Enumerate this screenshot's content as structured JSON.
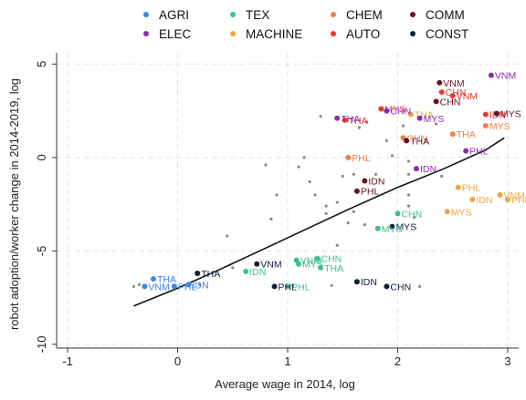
{
  "chart_data": {
    "type": "scatter",
    "xlabel": "Average wage in 2014, log",
    "ylabel": "robot adoption/worker change in 2014-2019, log",
    "xlim": [
      -1.1,
      3.1
    ],
    "ylim": [
      -10.2,
      5.6
    ],
    "xticks": [
      -1,
      0,
      1,
      2,
      3
    ],
    "yticks": [
      -10,
      -5,
      0,
      5
    ],
    "grid": true,
    "legend_position": "top",
    "legend": [
      {
        "key": "AGRI",
        "label": "AGRI",
        "color": "#3a86e8"
      },
      {
        "key": "TEX",
        "label": "TEX",
        "color": "#3fbf8f"
      },
      {
        "key": "CHEM",
        "label": "CHEM",
        "color": "#f07f4a"
      },
      {
        "key": "COMM",
        "label": "COMM",
        "color": "#6b1020"
      },
      {
        "key": "ELEC",
        "label": "ELEC",
        "color": "#8b2bb3"
      },
      {
        "key": "MACHINE",
        "label": "MACHINE",
        "color": "#eba93d"
      },
      {
        "key": "AUTO",
        "label": "AUTO",
        "color": "#e8392e"
      },
      {
        "key": "CONST",
        "label": "CONST",
        "color": "#101c3c"
      }
    ],
    "labeled_points": [
      {
        "sector": "AGRI",
        "country": "THA",
        "x": -0.22,
        "y": -6.5
      },
      {
        "sector": "AGRI",
        "country": "VNM",
        "x": -0.3,
        "y": -6.9
      },
      {
        "sector": "AGRI",
        "country": "PHL",
        "x": -0.03,
        "y": -6.9
      },
      {
        "sector": "AGRI",
        "country": "IDN",
        "x": 0.1,
        "y": -6.8
      },
      {
        "sector": "CONST",
        "country": "THA",
        "x": 0.18,
        "y": -6.2
      },
      {
        "sector": "CONST",
        "country": "VNM",
        "x": 0.72,
        "y": -5.7
      },
      {
        "sector": "TEX",
        "country": "IDN",
        "x": 0.62,
        "y": -6.1
      },
      {
        "sector": "TEX",
        "country": "VNM",
        "x": 1.08,
        "y": -5.5
      },
      {
        "sector": "TEX",
        "country": "MYS",
        "x": 1.1,
        "y": -5.7
      },
      {
        "sector": "TEX",
        "country": "CHN",
        "x": 1.27,
        "y": -5.4
      },
      {
        "sector": "TEX",
        "country": "THA",
        "x": 1.3,
        "y": -5.9
      },
      {
        "sector": "TEX",
        "country": "PHL",
        "x": 1.0,
        "y": -6.9
      },
      {
        "sector": "CONST",
        "country": "PHL",
        "x": 0.88,
        "y": -6.9
      },
      {
        "sector": "CONST",
        "country": "IDN",
        "x": 1.63,
        "y": -6.65
      },
      {
        "sector": "CONST",
        "country": "CHN",
        "x": 1.9,
        "y": -6.9
      },
      {
        "sector": "CONST",
        "country": "MYS",
        "x": 1.95,
        "y": -3.7
      },
      {
        "sector": "TEX",
        "country": "CHN",
        "x": 2.0,
        "y": -3.0
      },
      {
        "sector": "TEX",
        "country": "MYS",
        "x": 1.82,
        "y": -3.8
      },
      {
        "sector": "CHEM",
        "country": "PHL",
        "x": 1.55,
        "y": 0.0
      },
      {
        "sector": "COMM",
        "country": "IDN",
        "x": 1.7,
        "y": -1.25
      },
      {
        "sector": "COMM",
        "country": "PHL",
        "x": 1.63,
        "y": -1.8
      },
      {
        "sector": "ELEC",
        "country": "IDN",
        "x": 2.17,
        "y": -0.6
      },
      {
        "sector": "ELEC",
        "country": "PHL",
        "x": 2.62,
        "y": 0.35
      },
      {
        "sector": "MACHINE",
        "country": "PHL",
        "x": 2.55,
        "y": -1.6
      },
      {
        "sector": "MACHINE",
        "country": "IDN",
        "x": 2.68,
        "y": -2.25
      },
      {
        "sector": "MACHINE",
        "country": "MYS",
        "x": 2.45,
        "y": -2.9
      },
      {
        "sector": "MACHINE",
        "country": "VNM",
        "x": 2.93,
        "y": -2.0
      },
      {
        "sector": "MACHINE",
        "country": "PHL",
        "x": 3.0,
        "y": -2.25
      },
      {
        "sector": "CHEM",
        "country": "THA",
        "x": 2.5,
        "y": 1.25
      },
      {
        "sector": "CHEM",
        "country": "CHN",
        "x": 2.05,
        "y": 1.05
      },
      {
        "sector": "COMM",
        "country": "THA",
        "x": 2.08,
        "y": 0.9
      },
      {
        "sector": "MACHINE",
        "country": "THA",
        "x": 2.12,
        "y": 2.3
      },
      {
        "sector": "ELEC",
        "country": "MYS",
        "x": 2.2,
        "y": 2.1
      },
      {
        "sector": "AUTO",
        "country": "THA",
        "x": 1.52,
        "y": 2.0
      },
      {
        "sector": "ELEC",
        "country": "THA",
        "x": 1.45,
        "y": 2.1
      },
      {
        "sector": "AUTO",
        "country": "MYS",
        "x": 1.85,
        "y": 2.6
      },
      {
        "sector": "ELEC",
        "country": "CHN",
        "x": 1.9,
        "y": 2.5
      },
      {
        "sector": "COMM",
        "country": "VNM",
        "x": 2.38,
        "y": 4.0
      },
      {
        "sector": "AUTO",
        "country": "CHN",
        "x": 2.4,
        "y": 3.5
      },
      {
        "sector": "AUTO",
        "country": "VNM",
        "x": 2.5,
        "y": 3.3
      },
      {
        "sector": "COMM",
        "country": "CHN",
        "x": 2.35,
        "y": 3.0
      },
      {
        "sector": "ELEC",
        "country": "VNM",
        "x": 2.85,
        "y": 4.4
      },
      {
        "sector": "AUTO",
        "country": "IDN",
        "x": 2.8,
        "y": 2.3
      },
      {
        "sector": "COMM",
        "country": "MYS",
        "x": 2.9,
        "y": 2.35
      },
      {
        "sector": "CHEM",
        "country": "MYS",
        "x": 2.8,
        "y": 1.7
      }
    ],
    "gray_points": [
      [
        -0.4,
        -6.9
      ],
      [
        -0.35,
        -6.8
      ],
      [
        0.2,
        -6.8
      ],
      [
        0.45,
        -4.2
      ],
      [
        0.8,
        -0.4
      ],
      [
        0.85,
        -3.3
      ],
      [
        0.9,
        -2.0
      ],
      [
        1.1,
        -0.5
      ],
      [
        1.2,
        -1.3
      ],
      [
        1.25,
        -2.0
      ],
      [
        1.3,
        2.2
      ],
      [
        1.35,
        -2.6
      ],
      [
        1.35,
        -3.0
      ],
      [
        1.45,
        -2.4
      ],
      [
        1.45,
        -4.7
      ],
      [
        1.5,
        -1.0
      ],
      [
        1.55,
        -3.5
      ],
      [
        1.6,
        -0.9
      ],
      [
        1.6,
        -2.9
      ],
      [
        1.65,
        1.6
      ],
      [
        1.7,
        -3.6
      ],
      [
        1.72,
        1.9
      ],
      [
        1.8,
        -0.9
      ],
      [
        1.9,
        0.9
      ],
      [
        1.95,
        0.1
      ],
      [
        2.05,
        1.7
      ],
      [
        2.1,
        -0.2
      ],
      [
        2.1,
        -0.9
      ],
      [
        2.1,
        -2.0
      ],
      [
        2.1,
        -2.6
      ],
      [
        2.15,
        -3.2
      ],
      [
        2.2,
        -6.9
      ],
      [
        2.35,
        1.8
      ],
      [
        2.4,
        -1.0
      ],
      [
        1.05,
        -6.85
      ],
      [
        1.4,
        -6.85
      ],
      [
        0.5,
        -5.9
      ],
      [
        1.15,
        0.0
      ]
    ],
    "fit_curve": [
      [
        -0.4,
        -7.95
      ],
      [
        0.0,
        -7.0
      ],
      [
        0.4,
        -5.95
      ],
      [
        0.8,
        -4.85
      ],
      [
        1.2,
        -3.75
      ],
      [
        1.6,
        -2.65
      ],
      [
        2.0,
        -1.6
      ],
      [
        2.4,
        -0.65
      ],
      [
        2.8,
        0.4
      ],
      [
        2.97,
        1.05
      ]
    ]
  }
}
